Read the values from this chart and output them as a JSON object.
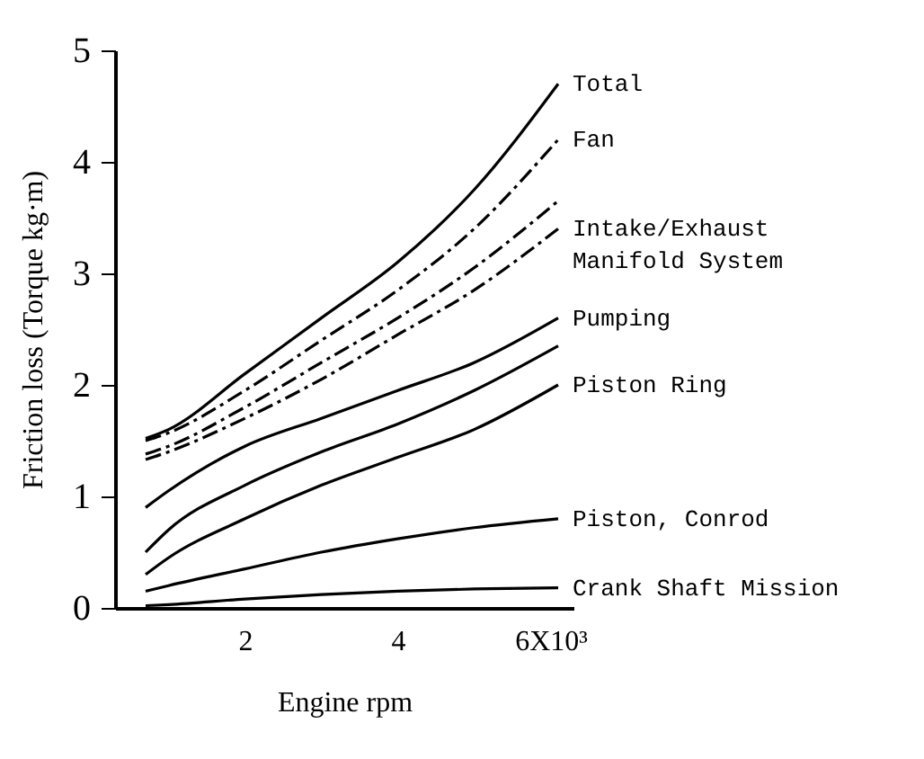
{
  "chart_data": {
    "type": "line",
    "xlabel": "Engine rpm",
    "ylabel": "Friction loss (Torque kg·m)",
    "x": [
      0.7,
      1,
      2,
      3,
      4,
      5,
      6.1
    ],
    "xlim": [
      0.3,
      6.3
    ],
    "xticks": [
      2,
      4,
      {
        "value": 6,
        "label": "6X10³"
      }
    ],
    "ylim": [
      0,
      5
    ],
    "yticks": [
      0,
      1,
      2,
      3,
      4,
      5
    ],
    "grid": false,
    "marker": "none",
    "series": [
      {
        "name": "Total",
        "color": "#000000",
        "line_style": "solid",
        "values": [
          1.52,
          1.6,
          2.1,
          2.6,
          3.1,
          3.75,
          4.7
        ]
      },
      {
        "name": "Fan",
        "color": "#000000",
        "line_style": "dashed",
        "values": [
          1.5,
          1.57,
          1.95,
          2.4,
          2.85,
          3.4,
          4.2
        ]
      },
      {
        "color": "#000000",
        "line_style": "dashed",
        "values": [
          1.38,
          1.45,
          1.8,
          2.2,
          2.6,
          3.05,
          3.65
        ]
      },
      {
        "name": "Intake/Exhaust\n   Manifold System",
        "color": "#000000",
        "line_style": "dashed",
        "values": [
          1.33,
          1.4,
          1.7,
          2.05,
          2.45,
          2.85,
          3.4
        ]
      },
      {
        "name": "Pumping",
        "color": "#000000",
        "line_style": "solid",
        "values": [
          0.9,
          1.05,
          1.45,
          1.7,
          1.95,
          2.2,
          2.6
        ]
      },
      {
        "color": "#000000",
        "line_style": "solid",
        "values": [
          0.5,
          0.7,
          1.1,
          1.4,
          1.65,
          1.95,
          2.35
        ]
      },
      {
        "name": "Piston Ring",
        "color": "#000000",
        "line_style": "solid",
        "values": [
          0.3,
          0.45,
          0.8,
          1.1,
          1.35,
          1.6,
          2.0
        ]
      },
      {
        "name": "Piston, Conrod",
        "color": "#000000",
        "line_style": "solid",
        "values": [
          0.15,
          0.2,
          0.35,
          0.5,
          0.62,
          0.72,
          0.8
        ]
      },
      {
        "name": "Crank Shaft  Mission",
        "color": "#000000",
        "line_style": "solid",
        "values": [
          0.02,
          0.03,
          0.08,
          0.12,
          0.15,
          0.17,
          0.18
        ]
      }
    ]
  }
}
